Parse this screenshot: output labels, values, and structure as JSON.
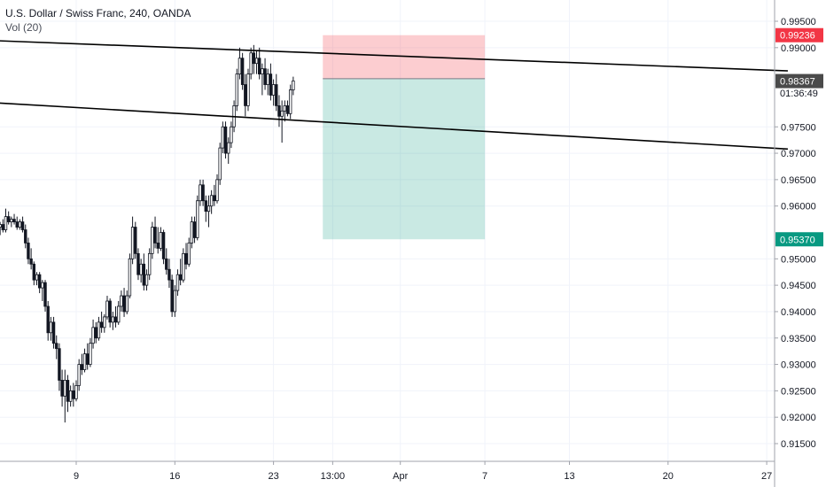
{
  "legend": {
    "symbol": "U.S. Dollar / Swiss Franc, 240, OANDA",
    "indicator": "Vol (20)"
  },
  "chart_data": {
    "type": "candlestick",
    "ylim": [
      0.9115,
      0.999
    ],
    "y_ticks": [
      {
        "value": 0.995,
        "label": "0.99500"
      },
      {
        "value": 0.99,
        "label": "0.99000"
      },
      {
        "value": 0.975,
        "label": "0.97500"
      },
      {
        "value": 0.97,
        "label": "0.97000"
      },
      {
        "value": 0.965,
        "label": "0.96500"
      },
      {
        "value": 0.96,
        "label": "0.96000"
      },
      {
        "value": 0.95,
        "label": "0.95000"
      },
      {
        "value": 0.945,
        "label": "0.94500"
      },
      {
        "value": 0.94,
        "label": "0.94000"
      },
      {
        "value": 0.935,
        "label": "0.93500"
      },
      {
        "value": 0.93,
        "label": "0.93000"
      },
      {
        "value": 0.925,
        "label": "0.92500"
      },
      {
        "value": 0.92,
        "label": "0.92000"
      },
      {
        "value": 0.915,
        "label": "0.91500"
      }
    ],
    "x_ticks": [
      {
        "day": 9,
        "label": "9"
      },
      {
        "day": 16,
        "label": "16"
      },
      {
        "day": 23,
        "label": "23"
      },
      {
        "day": 27.2,
        "label": "13:00"
      },
      {
        "day": 32,
        "label": "Apr"
      },
      {
        "day": 38,
        "label": "7"
      },
      {
        "day": 44,
        "label": "13"
      },
      {
        "day": 51,
        "label": "20"
      },
      {
        "day": 58,
        "label": "27"
      }
    ],
    "price_labels": [
      {
        "name": "stop-loss",
        "value": 0.99236,
        "label": "0.99236",
        "color": "#f23645"
      },
      {
        "name": "entry",
        "value": 0.98411,
        "label": "0.98411",
        "color": "#ffffff"
      },
      {
        "name": "countdown",
        "value": 0.9814,
        "label": "01:36:49",
        "color": "#ffffff"
      },
      {
        "name": "last-price",
        "value": 0.98367,
        "label": "0.98367",
        "color": "#4a4a4a"
      },
      {
        "name": "take-profit",
        "value": 0.9537,
        "label": "0.95370",
        "color": "#089981"
      }
    ],
    "position": {
      "x_start_day": 26.5,
      "x_end_day": 38,
      "entry": 0.98411,
      "stop": 0.99236,
      "target": 0.9537,
      "stop_color": "#f23645",
      "target_color": "#089981"
    },
    "trendlines": [
      {
        "x1_day": 2.0,
        "y1": 0.99145,
        "x2_day": 59.5,
        "y2": 0.9856,
        "color": "#000000"
      },
      {
        "x1_day": 2.0,
        "y1": 0.97975,
        "x2_day": 59.5,
        "y2": 0.9708,
        "color": "#000000"
      }
    ],
    "candles": [
      [
        2.0,
        0.958,
        0.959,
        0.9565,
        0.9575
      ],
      [
        2.2,
        0.9575,
        0.9585,
        0.956,
        0.9565
      ],
      [
        2.4,
        0.9565,
        0.9585,
        0.9555,
        0.958
      ],
      [
        2.6,
        0.958,
        0.959,
        0.9565,
        0.957
      ],
      [
        2.8,
        0.957,
        0.958,
        0.9545,
        0.9555
      ],
      [
        3.0,
        0.9555,
        0.9575,
        0.955,
        0.957
      ],
      [
        3.2,
        0.957,
        0.9585,
        0.956,
        0.9565
      ],
      [
        3.4,
        0.9565,
        0.9575,
        0.9555,
        0.956
      ],
      [
        3.6,
        0.956,
        0.957,
        0.9545,
        0.9565
      ],
      [
        3.8,
        0.9565,
        0.9575,
        0.955,
        0.9555
      ],
      [
        4.0,
        0.9555,
        0.9595,
        0.955,
        0.958
      ],
      [
        4.2,
        0.958,
        0.959,
        0.9565,
        0.957
      ],
      [
        4.4,
        0.957,
        0.958,
        0.956,
        0.9575
      ],
      [
        4.6,
        0.9575,
        0.9585,
        0.9565,
        0.957
      ],
      [
        4.8,
        0.957,
        0.958,
        0.9555,
        0.956
      ],
      [
        5.0,
        0.956,
        0.9575,
        0.9555,
        0.957
      ],
      [
        5.2,
        0.957,
        0.958,
        0.955,
        0.9555
      ],
      [
        5.4,
        0.9555,
        0.9565,
        0.952,
        0.953
      ],
      [
        5.6,
        0.953,
        0.954,
        0.949,
        0.95
      ],
      [
        5.8,
        0.95,
        0.952,
        0.948,
        0.949
      ],
      [
        6.0,
        0.949,
        0.9495,
        0.945,
        0.946
      ],
      [
        6.2,
        0.946,
        0.9475,
        0.945,
        0.947
      ],
      [
        6.4,
        0.947,
        0.9475,
        0.9435,
        0.9445
      ],
      [
        6.6,
        0.9445,
        0.946,
        0.942,
        0.9455
      ],
      [
        6.8,
        0.9455,
        0.946,
        0.94,
        0.941
      ],
      [
        7.0,
        0.941,
        0.942,
        0.9345,
        0.936
      ],
      [
        7.2,
        0.936,
        0.939,
        0.9345,
        0.938
      ],
      [
        7.4,
        0.938,
        0.939,
        0.933,
        0.934
      ],
      [
        7.6,
        0.934,
        0.9355,
        0.931,
        0.933
      ],
      [
        7.8,
        0.933,
        0.934,
        0.925,
        0.927
      ],
      [
        8.0,
        0.927,
        0.929,
        0.922,
        0.924
      ],
      [
        8.2,
        0.924,
        0.929,
        0.919,
        0.927
      ],
      [
        8.4,
        0.927,
        0.928,
        0.921,
        0.923
      ],
      [
        8.6,
        0.923,
        0.926,
        0.922,
        0.925
      ],
      [
        8.8,
        0.925,
        0.9265,
        0.922,
        0.9235
      ],
      [
        9.0,
        0.9235,
        0.927,
        0.923,
        0.926
      ],
      [
        9.2,
        0.926,
        0.931,
        0.925,
        0.93
      ],
      [
        9.4,
        0.93,
        0.932,
        0.928,
        0.929
      ],
      [
        9.6,
        0.929,
        0.933,
        0.9285,
        0.932
      ],
      [
        9.8,
        0.932,
        0.934,
        0.929,
        0.93
      ],
      [
        10.0,
        0.93,
        0.935,
        0.9295,
        0.934
      ],
      [
        10.2,
        0.934,
        0.9385,
        0.933,
        0.937
      ],
      [
        10.4,
        0.937,
        0.938,
        0.934,
        0.935
      ],
      [
        10.6,
        0.935,
        0.939,
        0.9345,
        0.938
      ],
      [
        10.8,
        0.938,
        0.94,
        0.936,
        0.937
      ],
      [
        11.0,
        0.937,
        0.9395,
        0.936,
        0.939
      ],
      [
        11.2,
        0.939,
        0.943,
        0.9385,
        0.942
      ],
      [
        11.4,
        0.942,
        0.9425,
        0.937,
        0.938
      ],
      [
        11.6,
        0.938,
        0.94,
        0.9365,
        0.939
      ],
      [
        11.8,
        0.939,
        0.941,
        0.937,
        0.938
      ],
      [
        12.0,
        0.938,
        0.942,
        0.9375,
        0.941
      ],
      [
        12.2,
        0.941,
        0.944,
        0.94,
        0.943
      ],
      [
        12.4,
        0.943,
        0.9445,
        0.939,
        0.94
      ],
      [
        12.6,
        0.94,
        0.944,
        0.9395,
        0.943
      ],
      [
        12.8,
        0.943,
        0.951,
        0.9425,
        0.95
      ],
      [
        13.0,
        0.95,
        0.958,
        0.949,
        0.956
      ],
      [
        13.2,
        0.956,
        0.957,
        0.95,
        0.951
      ],
      [
        13.4,
        0.951,
        0.952,
        0.946,
        0.947
      ],
      [
        13.6,
        0.947,
        0.95,
        0.9455,
        0.949
      ],
      [
        13.8,
        0.949,
        0.951,
        0.944,
        0.945
      ],
      [
        14.0,
        0.945,
        0.948,
        0.944,
        0.947
      ],
      [
        14.2,
        0.947,
        0.952,
        0.946,
        0.951
      ],
      [
        14.4,
        0.951,
        0.957,
        0.95,
        0.956
      ],
      [
        14.6,
        0.956,
        0.958,
        0.952,
        0.953
      ],
      [
        14.8,
        0.953,
        0.956,
        0.951,
        0.952
      ],
      [
        15.0,
        0.952,
        0.956,
        0.9515,
        0.955
      ],
      [
        15.2,
        0.955,
        0.9555,
        0.949,
        0.95
      ],
      [
        15.4,
        0.95,
        0.952,
        0.947,
        0.948
      ],
      [
        15.6,
        0.948,
        0.95,
        0.9445,
        0.946
      ],
      [
        15.8,
        0.946,
        0.947,
        0.939,
        0.94
      ],
      [
        16.0,
        0.94,
        0.945,
        0.939,
        0.944
      ],
      [
        16.2,
        0.944,
        0.948,
        0.943,
        0.947
      ],
      [
        16.4,
        0.947,
        0.95,
        0.945,
        0.946
      ],
      [
        16.6,
        0.946,
        0.952,
        0.9455,
        0.951
      ],
      [
        16.8,
        0.951,
        0.953,
        0.948,
        0.949
      ],
      [
        17.0,
        0.949,
        0.954,
        0.9485,
        0.953
      ],
      [
        17.2,
        0.953,
        0.958,
        0.952,
        0.957
      ],
      [
        17.4,
        0.957,
        0.958,
        0.953,
        0.954
      ],
      [
        17.6,
        0.954,
        0.962,
        0.9535,
        0.961
      ],
      [
        17.8,
        0.961,
        0.965,
        0.96,
        0.964
      ],
      [
        18.0,
        0.964,
        0.965,
        0.96,
        0.961
      ],
      [
        18.2,
        0.961,
        0.962,
        0.957,
        0.959
      ],
      [
        18.4,
        0.959,
        0.962,
        0.956,
        0.96
      ],
      [
        18.6,
        0.96,
        0.963,
        0.9585,
        0.962
      ],
      [
        18.8,
        0.962,
        0.964,
        0.96,
        0.961
      ],
      [
        19.0,
        0.961,
        0.966,
        0.9605,
        0.965
      ],
      [
        19.2,
        0.965,
        0.972,
        0.964,
        0.971
      ],
      [
        19.4,
        0.971,
        0.976,
        0.97,
        0.975
      ],
      [
        19.6,
        0.975,
        0.976,
        0.969,
        0.97
      ],
      [
        19.8,
        0.97,
        0.973,
        0.968,
        0.972
      ],
      [
        20.0,
        0.972,
        0.976,
        0.971,
        0.975
      ],
      [
        20.2,
        0.975,
        0.98,
        0.974,
        0.979
      ],
      [
        20.4,
        0.979,
        0.986,
        0.978,
        0.985
      ],
      [
        20.6,
        0.985,
        0.99,
        0.984,
        0.988
      ],
      [
        20.8,
        0.988,
        0.989,
        0.982,
        0.983
      ],
      [
        21.0,
        0.983,
        0.985,
        0.977,
        0.979
      ],
      [
        21.2,
        0.979,
        0.986,
        0.978,
        0.985
      ],
      [
        21.4,
        0.985,
        0.99,
        0.984,
        0.989
      ],
      [
        21.6,
        0.989,
        0.9905,
        0.985,
        0.987
      ],
      [
        21.8,
        0.987,
        0.9895,
        0.985,
        0.988
      ],
      [
        22.0,
        0.988,
        0.99,
        0.984,
        0.985
      ],
      [
        22.2,
        0.985,
        0.987,
        0.981,
        0.986
      ],
      [
        22.4,
        0.986,
        0.988,
        0.982,
        0.983
      ],
      [
        22.6,
        0.983,
        0.986,
        0.981,
        0.985
      ],
      [
        22.8,
        0.985,
        0.987,
        0.98,
        0.981
      ],
      [
        23.0,
        0.981,
        0.984,
        0.979,
        0.983
      ],
      [
        23.2,
        0.983,
        0.985,
        0.978,
        0.979
      ],
      [
        23.4,
        0.979,
        0.981,
        0.975,
        0.977
      ],
      [
        23.6,
        0.977,
        0.98,
        0.972,
        0.978
      ],
      [
        23.8,
        0.978,
        0.98,
        0.976,
        0.979
      ],
      [
        24.0,
        0.979,
        0.98,
        0.977,
        0.9775
      ],
      [
        24.2,
        0.9775,
        0.983,
        0.9765,
        0.982
      ],
      [
        24.4,
        0.982,
        0.9845,
        0.981,
        0.9837
      ]
    ]
  }
}
